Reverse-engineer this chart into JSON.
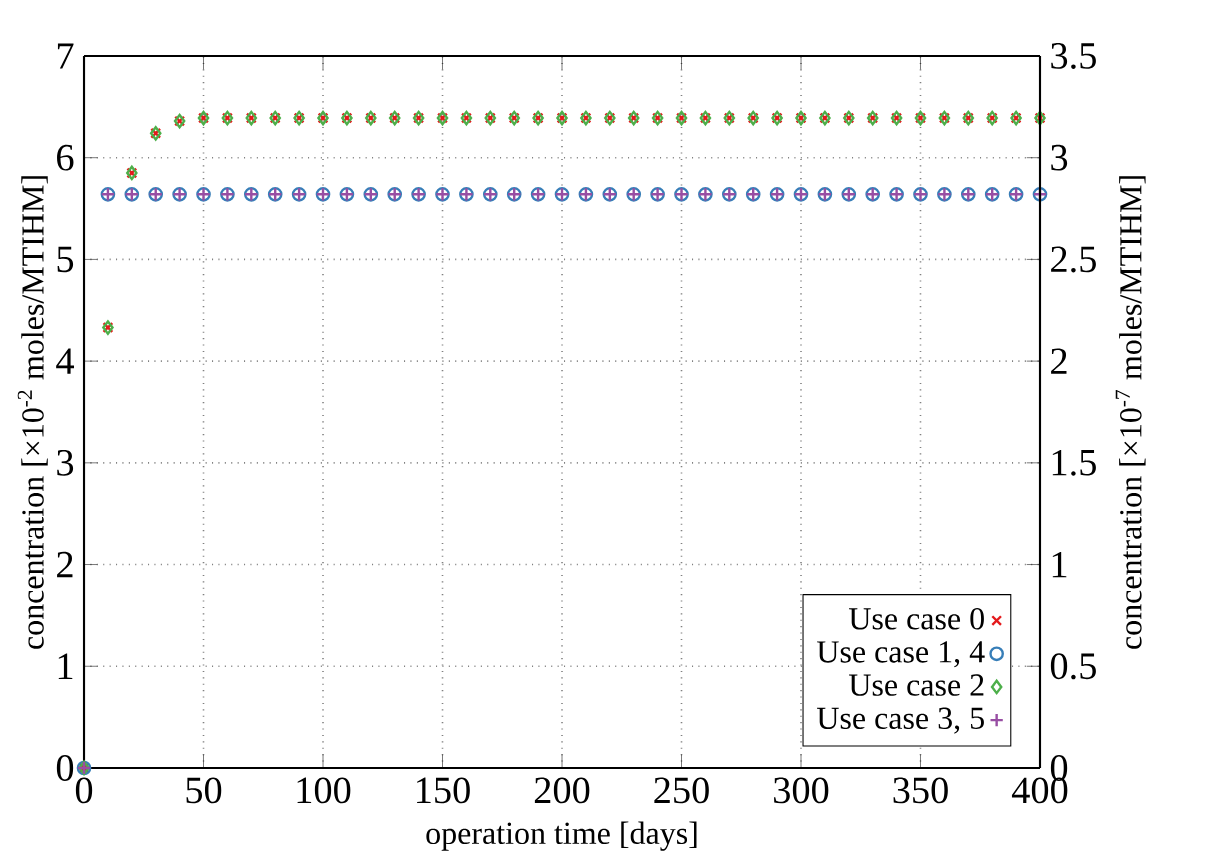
{
  "chart_data": {
    "type": "scatter",
    "xlabel": "operation time [days]",
    "ylabel": "concentration [×10$^{-2}$ moles/MTIHM]",
    "y2label": "concentration [×10$^{-7}$ moles/MTIHM]",
    "x": [
      0,
      10,
      20,
      30,
      40,
      50,
      60,
      70,
      80,
      90,
      100,
      110,
      120,
      130,
      140,
      150,
      160,
      170,
      180,
      190,
      200,
      210,
      220,
      230,
      240,
      250,
      260,
      270,
      280,
      290,
      300,
      310,
      320,
      330,
      340,
      350,
      360,
      370,
      380,
      390,
      400
    ],
    "series": [
      {
        "name": "Use case 0",
        "color": "#e41a1c",
        "marker": "cross",
        "values": [
          0,
          4.33,
          5.85,
          6.24,
          6.36,
          6.39,
          6.39,
          6.39,
          6.39,
          6.39,
          6.39,
          6.39,
          6.39,
          6.39,
          6.39,
          6.39,
          6.39,
          6.39,
          6.39,
          6.39,
          6.39,
          6.39,
          6.39,
          6.39,
          6.39,
          6.39,
          6.39,
          6.39,
          6.39,
          6.39,
          6.39,
          6.39,
          6.39,
          6.39,
          6.39,
          6.39,
          6.39,
          6.39,
          6.39,
          6.39,
          6.39
        ]
      },
      {
        "name": "Use case 1, 4",
        "color": "#377eb8",
        "marker": "circle",
        "values": [
          0,
          5.64,
          5.64,
          5.64,
          5.64,
          5.64,
          5.64,
          5.64,
          5.64,
          5.64,
          5.64,
          5.64,
          5.64,
          5.64,
          5.64,
          5.64,
          5.64,
          5.64,
          5.64,
          5.64,
          5.64,
          5.64,
          5.64,
          5.64,
          5.64,
          5.64,
          5.64,
          5.64,
          5.64,
          5.64,
          5.64,
          5.64,
          5.64,
          5.64,
          5.64,
          5.64,
          5.64,
          5.64,
          5.64,
          5.64,
          5.64
        ]
      },
      {
        "name": "Use case 2",
        "color": "#4daf4a",
        "marker": "diamond",
        "values": [
          0,
          4.33,
          5.85,
          6.24,
          6.36,
          6.39,
          6.39,
          6.39,
          6.39,
          6.39,
          6.39,
          6.39,
          6.39,
          6.39,
          6.39,
          6.39,
          6.39,
          6.39,
          6.39,
          6.39,
          6.39,
          6.39,
          6.39,
          6.39,
          6.39,
          6.39,
          6.39,
          6.39,
          6.39,
          6.39,
          6.39,
          6.39,
          6.39,
          6.39,
          6.39,
          6.39,
          6.39,
          6.39,
          6.39,
          6.39,
          6.39
        ]
      },
      {
        "name": "Use case 3, 5",
        "color": "#984ea3",
        "marker": "plus",
        "values": [
          0,
          5.64,
          5.64,
          5.64,
          5.64,
          5.64,
          5.64,
          5.64,
          5.64,
          5.64,
          5.64,
          5.64,
          5.64,
          5.64,
          5.64,
          5.64,
          5.64,
          5.64,
          5.64,
          5.64,
          5.64,
          5.64,
          5.64,
          5.64,
          5.64,
          5.64,
          5.64,
          5.64,
          5.64,
          5.64,
          5.64,
          5.64,
          5.64,
          5.64,
          5.64,
          5.64,
          5.64,
          5.64,
          5.64,
          5.64,
          5.64
        ]
      }
    ],
    "xlim": [
      0,
      400
    ],
    "xticks": [
      0,
      50,
      100,
      150,
      200,
      250,
      300,
      350,
      400
    ],
    "ylim": [
      0,
      7
    ],
    "yticks": [
      0,
      1,
      2,
      3,
      4,
      5,
      6,
      7
    ],
    "y2lim": [
      0,
      3.5
    ],
    "y2ticks": [
      0,
      0.5,
      1,
      1.5,
      2,
      2.5,
      3,
      3.5
    ],
    "grid": true,
    "legend": "bottom right"
  }
}
